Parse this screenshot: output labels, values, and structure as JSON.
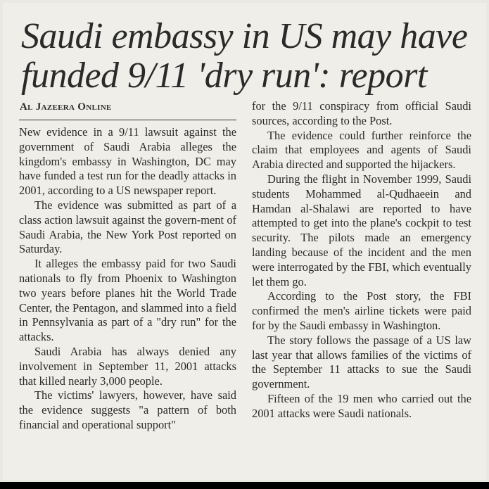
{
  "article": {
    "headline": "Saudi embassy in US may have funded 9/11 'dry run': report",
    "byline": "Al Jazeera Online",
    "left_paragraphs": [
      "New evidence in a 9/11 lawsuit against the government of Saudi Arabia alleges the kingdom's embassy in Washington, DC may have funded a test run for the deadly attacks in 2001, according to a US newspaper report.",
      "The evidence was submitted as part of a class action lawsuit against the govern-ment of Saudi Arabia, the New York Post reported on Saturday.",
      "It alleges the embassy paid for two Saudi nationals to fly from Phoenix to Washington two years before planes hit the World Trade Center, the Pentagon, and slammed into a field in Pennsylvania as part of a \"dry run\" for the attacks.",
      "Saudi Arabia has always denied any involvement in September 11, 2001 attacks that killed nearly 3,000 people.",
      "The victims' lawyers, however, have said the evidence suggests \"a pattern of both financial and operational support\""
    ],
    "right_paragraphs": [
      "for the 9/11 conspiracy from official Saudi sources, according to the Post.",
      "The evidence could further reinforce the claim that employees and agents of Saudi Arabia directed and supported the hijackers.",
      "During the flight in November 1999, Saudi students Mohammed al-Qudhaeein and Hamdan al-Shalawi are reported to have attempted to get into the plane's cockpit to test security. The pilots made an emergency landing because of the incident and the men were interrogated by the FBI, which eventually let them go.",
      "According to the Post story, the FBI confirmed the men's airline tickets were paid for by the Saudi embassy in Washington.",
      "The story follows the passage of a US law last year that allows families of the victims of the September 11 attacks to sue the Saudi government.",
      "Fifteen of the 19 men who carried out the 2001 attacks were Saudi nationals."
    ]
  }
}
